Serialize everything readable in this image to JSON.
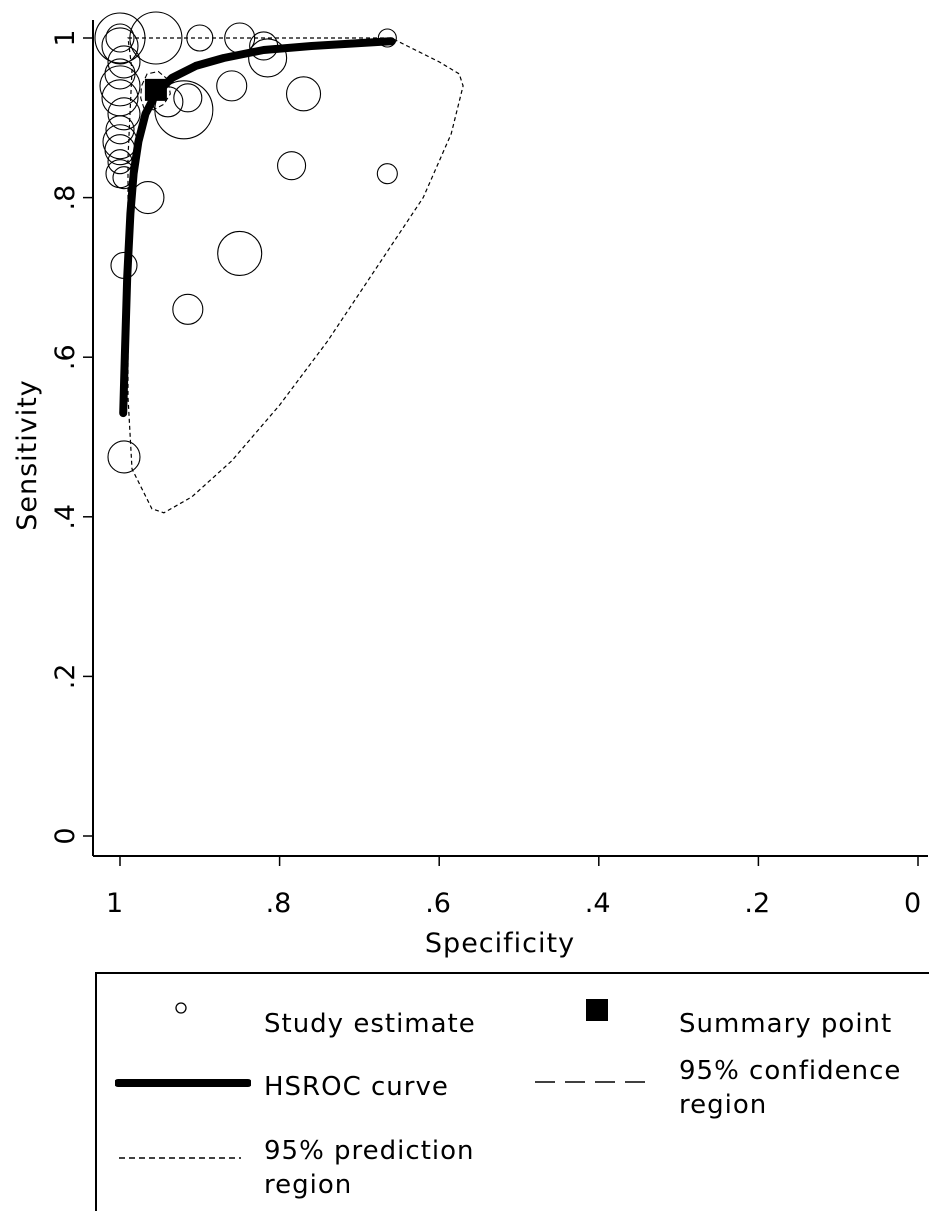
{
  "chart_data": {
    "type": "scatter",
    "title": "",
    "xlabel": "Specificity",
    "ylabel": "Sensitivity",
    "x_reversed": true,
    "xlim": [
      1.03,
      0
    ],
    "ylim": [
      0,
      1.04
    ],
    "x_ticks": [
      1,
      0.8,
      0.6,
      0.4,
      0.2,
      0
    ],
    "x_tick_labels": [
      "1",
      ".8",
      ".6",
      ".4",
      ".2",
      "0"
    ],
    "y_ticks": [
      0,
      0.2,
      0.4,
      0.6,
      0.8,
      1
    ],
    "y_tick_labels": [
      "0",
      ".2",
      ".4",
      ".6",
      ".8",
      "1"
    ],
    "grid": false,
    "legend_position": "bottom",
    "series": [
      {
        "name": "Study estimate",
        "kind": "bubbles",
        "points": [
          {
            "x": 1.0,
            "y": 1.0,
            "r": 25
          },
          {
            "x": 1.0,
            "y": 1.0,
            "r": 14
          },
          {
            "x": 1.0,
            "y": 0.99,
            "r": 18
          },
          {
            "x": 0.995,
            "y": 0.97,
            "r": 16
          },
          {
            "x": 1.0,
            "y": 0.955,
            "r": 15
          },
          {
            "x": 1.0,
            "y": 0.94,
            "r": 20
          },
          {
            "x": 1.0,
            "y": 0.925,
            "r": 18
          },
          {
            "x": 0.995,
            "y": 0.905,
            "r": 16
          },
          {
            "x": 1.0,
            "y": 0.885,
            "r": 14
          },
          {
            "x": 1.0,
            "y": 0.87,
            "r": 17
          },
          {
            "x": 1.0,
            "y": 0.86,
            "r": 15
          },
          {
            "x": 1.0,
            "y": 0.845,
            "r": 12
          },
          {
            "x": 1.0,
            "y": 0.83,
            "r": 14
          },
          {
            "x": 0.995,
            "y": 0.825,
            "r": 11
          },
          {
            "x": 0.955,
            "y": 1.0,
            "r": 26
          },
          {
            "x": 0.9,
            "y": 1.0,
            "r": 13
          },
          {
            "x": 0.85,
            "y": 1.0,
            "r": 15
          },
          {
            "x": 0.82,
            "y": 0.99,
            "r": 14
          },
          {
            "x": 0.815,
            "y": 0.975,
            "r": 19
          },
          {
            "x": 0.665,
            "y": 1.0,
            "r": 9
          },
          {
            "x": 0.94,
            "y": 0.92,
            "r": 15
          },
          {
            "x": 0.915,
            "y": 0.925,
            "r": 14
          },
          {
            "x": 0.92,
            "y": 0.91,
            "r": 29
          },
          {
            "x": 0.86,
            "y": 0.94,
            "r": 15
          },
          {
            "x": 0.77,
            "y": 0.93,
            "r": 17
          },
          {
            "x": 0.785,
            "y": 0.84,
            "r": 14
          },
          {
            "x": 0.665,
            "y": 0.83,
            "r": 10
          },
          {
            "x": 0.965,
            "y": 0.8,
            "r": 16
          },
          {
            "x": 0.85,
            "y": 0.73,
            "r": 22
          },
          {
            "x": 0.915,
            "y": 0.66,
            "r": 15
          },
          {
            "x": 0.995,
            "y": 0.715,
            "r": 13
          },
          {
            "x": 0.995,
            "y": 0.475,
            "r": 16
          }
        ]
      },
      {
        "name": "Summary point",
        "kind": "square",
        "points": [
          {
            "x": 0.955,
            "y": 0.935
          }
        ]
      },
      {
        "name": "HSROC curve",
        "kind": "curve",
        "points": [
          {
            "x": 0.996,
            "y": 0.53
          },
          {
            "x": 0.994,
            "y": 0.6
          },
          {
            "x": 0.991,
            "y": 0.7
          },
          {
            "x": 0.987,
            "y": 0.78
          },
          {
            "x": 0.983,
            "y": 0.83
          },
          {
            "x": 0.977,
            "y": 0.87
          },
          {
            "x": 0.968,
            "y": 0.905
          },
          {
            "x": 0.955,
            "y": 0.93
          },
          {
            "x": 0.935,
            "y": 0.95
          },
          {
            "x": 0.905,
            "y": 0.965
          },
          {
            "x": 0.87,
            "y": 0.975
          },
          {
            "x": 0.82,
            "y": 0.985
          },
          {
            "x": 0.76,
            "y": 0.99
          },
          {
            "x": 0.66,
            "y": 0.996
          }
        ]
      },
      {
        "name": "95% confidence region",
        "kind": "dashed-region",
        "points": [
          {
            "x": 0.97,
            "y": 0.912
          },
          {
            "x": 0.958,
            "y": 0.91
          },
          {
            "x": 0.945,
            "y": 0.917
          },
          {
            "x": 0.937,
            "y": 0.93
          },
          {
            "x": 0.94,
            "y": 0.948
          },
          {
            "x": 0.952,
            "y": 0.958
          },
          {
            "x": 0.966,
            "y": 0.955
          },
          {
            "x": 0.973,
            "y": 0.94
          },
          {
            "x": 0.974,
            "y": 0.925
          }
        ]
      },
      {
        "name": "95% prediction region",
        "kind": "dotted-region",
        "points": [
          {
            "x": 0.99,
            "y": 1.0
          },
          {
            "x": 0.66,
            "y": 1.0
          },
          {
            "x": 0.64,
            "y": 0.99
          },
          {
            "x": 0.6,
            "y": 0.97
          },
          {
            "x": 0.575,
            "y": 0.955
          },
          {
            "x": 0.57,
            "y": 0.94
          },
          {
            "x": 0.585,
            "y": 0.88
          },
          {
            "x": 0.62,
            "y": 0.8
          },
          {
            "x": 0.68,
            "y": 0.71
          },
          {
            "x": 0.74,
            "y": 0.62
          },
          {
            "x": 0.8,
            "y": 0.54
          },
          {
            "x": 0.86,
            "y": 0.47
          },
          {
            "x": 0.91,
            "y": 0.425
          },
          {
            "x": 0.945,
            "y": 0.405
          },
          {
            "x": 0.96,
            "y": 0.41
          },
          {
            "x": 0.985,
            "y": 0.46
          },
          {
            "x": 0.99,
            "y": 0.55
          },
          {
            "x": 0.99,
            "y": 0.7
          },
          {
            "x": 0.99,
            "y": 0.85
          },
          {
            "x": 0.985,
            "y": 0.96
          },
          {
            "x": 0.99,
            "y": 1.0
          }
        ]
      }
    ]
  },
  "legend": {
    "items": [
      {
        "label": "Study estimate"
      },
      {
        "label": "Summary point"
      },
      {
        "label": "HSROC curve"
      },
      {
        "label_line1": "95% confidence",
        "label_line2": "region"
      },
      {
        "label_line1": "95% prediction",
        "label_line2": "region"
      }
    ]
  }
}
